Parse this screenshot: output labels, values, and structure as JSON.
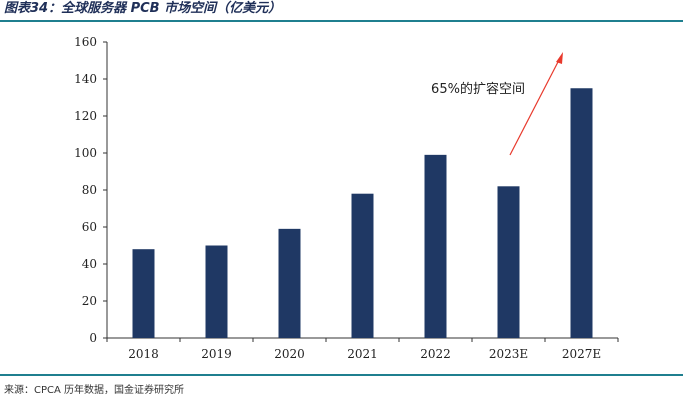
{
  "header": {
    "title": "图表34：全球服务器 PCB 市场空间（亿美元）"
  },
  "footer": {
    "source": "来源：CPCA 历年数据，国金证券研究所"
  },
  "chart_data": {
    "type": "bar",
    "title": "图表34：全球服务器 PCB 市场空间（亿美元）",
    "categories": [
      "2018",
      "2019",
      "2020",
      "2021",
      "2022",
      "2023E",
      "2027E"
    ],
    "values": [
      48,
      50,
      59,
      78,
      99,
      82,
      135
    ],
    "ylim": [
      0,
      160
    ],
    "yticks": [
      0,
      20,
      40,
      60,
      80,
      100,
      120,
      140,
      160
    ],
    "xlabel": "",
    "ylabel": "",
    "grid": false,
    "legend": "none",
    "bar_color": "#1f3864",
    "annotation": {
      "text": "65%的扩容空间",
      "arrow_color": "#e8392c"
    }
  }
}
